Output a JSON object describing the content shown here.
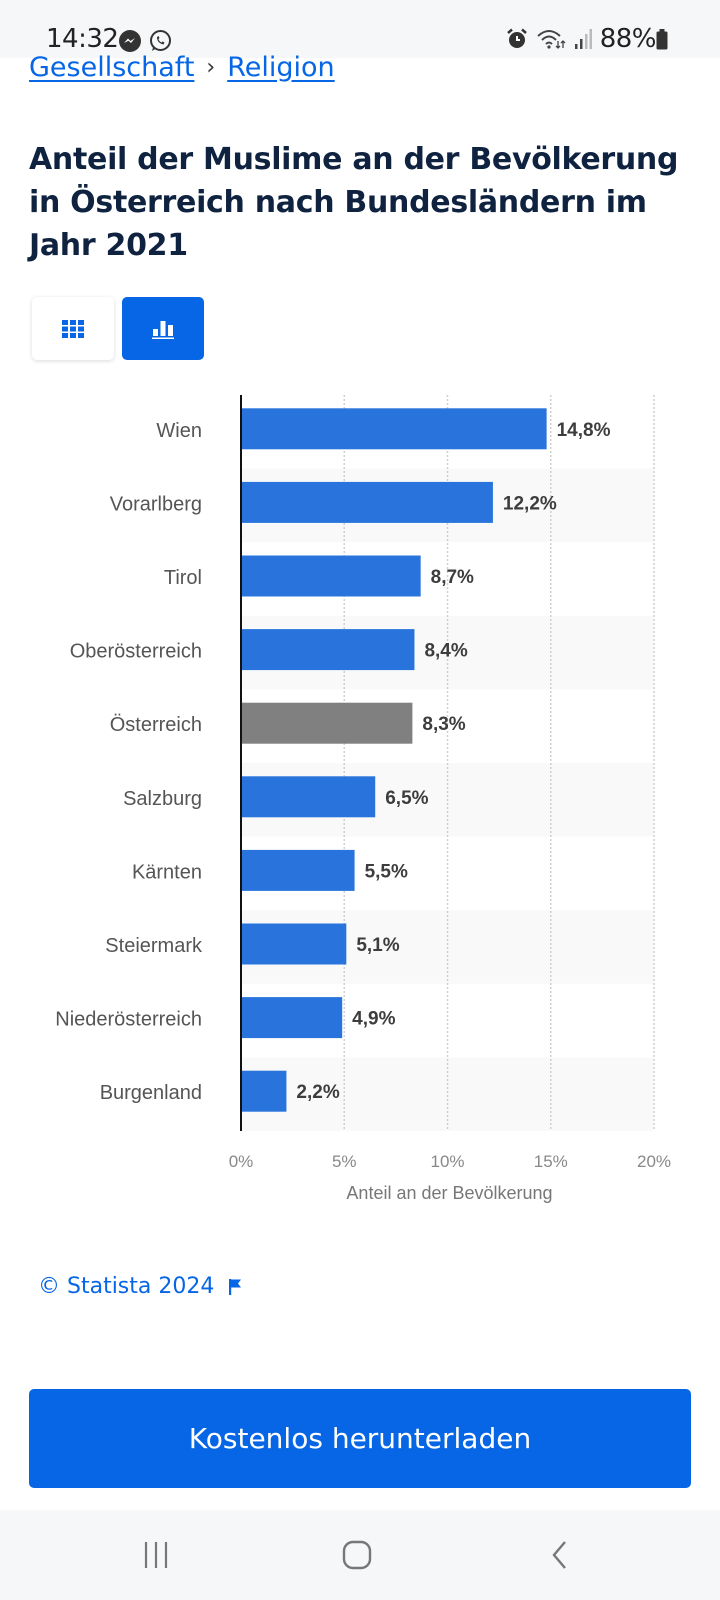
{
  "status_bar": {
    "time": "14:32",
    "battery": "88%",
    "icons": [
      "messenger-icon",
      "whatsapp-icon",
      "alarm-icon",
      "wifi-icon",
      "signal-icon",
      "battery-icon"
    ]
  },
  "breadcrumb": {
    "items": [
      "Gesellschaft",
      "Religion"
    ],
    "separator": "›"
  },
  "title": "Anteil der Muslime an der Bevölkerung in Österreich nach Bundesländern im Jahr 2021",
  "view_toggle": {
    "options": [
      "table-view",
      "chart-view"
    ],
    "active": "chart-view"
  },
  "colors": {
    "accent": "#0666e5",
    "bar": "#2874dc",
    "bar_highlight": "#808080",
    "title": "#0f2340"
  },
  "chart_data": {
    "type": "bar",
    "orientation": "horizontal",
    "title": "Anteil der Muslime an der Bevölkerung in Österreich nach Bundesländern im Jahr 2021",
    "xlabel": "Anteil an der Bevölkerung",
    "ylabel": "",
    "categories": [
      "Wien",
      "Vorarlberg",
      "Tirol",
      "Oberösterreich",
      "Österreich",
      "Salzburg",
      "Kärnten",
      "Steiermark",
      "Niederösterreich",
      "Burgenland"
    ],
    "values": [
      14.8,
      12.2,
      8.7,
      8.4,
      8.3,
      6.5,
      5.5,
      5.1,
      4.9,
      2.2
    ],
    "value_labels": [
      "14,8%",
      "12,2%",
      "8,7%",
      "8,4%",
      "8,3%",
      "6,5%",
      "5,5%",
      "5,1%",
      "4,9%",
      "2,2%"
    ],
    "highlighted": [
      "Österreich"
    ],
    "xlim": [
      0,
      20
    ],
    "xticks": [
      0,
      5,
      10,
      15,
      20
    ],
    "xtick_labels": [
      "0%",
      "5%",
      "10%",
      "15%",
      "20%"
    ],
    "grid": true,
    "legend": "none"
  },
  "footer": {
    "copyright": "© Statista 2024",
    "download_button": "Kostenlos herunterladen"
  },
  "nav_bar": {
    "buttons": [
      "recent-apps",
      "home",
      "back"
    ]
  }
}
